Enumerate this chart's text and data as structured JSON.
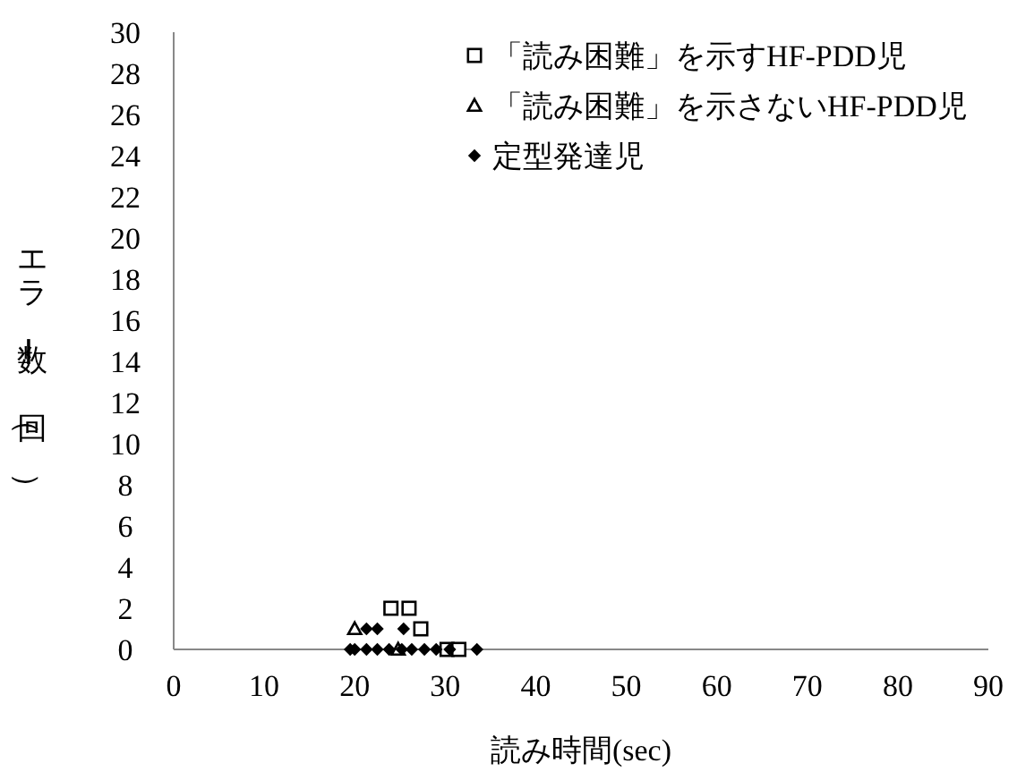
{
  "chart_data": {
    "type": "scatter",
    "xlabel": "読み時間(sec)",
    "ylabel": "エラー数（回）",
    "xlim": [
      0,
      90
    ],
    "ylim": [
      0,
      30
    ],
    "xticks": [
      0,
      10,
      20,
      30,
      40,
      50,
      60,
      70,
      80,
      90
    ],
    "yticks": [
      0,
      2,
      4,
      6,
      8,
      10,
      12,
      14,
      16,
      18,
      20,
      22,
      24,
      26,
      28,
      30
    ],
    "grid": false,
    "legend": "top right",
    "series": [
      {
        "name": "「読み困難」を示すHF-PDD児",
        "color": "#000000",
        "marker": "square",
        "x": [
          24,
          26,
          27.3,
          30.2,
          31.5
        ],
        "values": [
          2,
          2,
          1,
          0,
          0
        ]
      },
      {
        "name": "「読み困難」を示さないHF-PDD児",
        "color": "#000000",
        "marker": "triangle",
        "x": [
          20,
          24.8
        ],
        "values": [
          1,
          0
        ]
      },
      {
        "name": "定型発達児",
        "color": "#000000",
        "marker": "diamond",
        "x": [
          21.3,
          22.5,
          25.4,
          19.5,
          20,
          21.3,
          22.5,
          23.8,
          25.2,
          26.3,
          27.7,
          29,
          30.5,
          33.5
        ],
        "values": [
          1,
          1,
          1,
          0,
          0,
          0,
          0,
          0,
          0,
          0,
          0,
          0,
          0,
          0
        ]
      }
    ]
  }
}
